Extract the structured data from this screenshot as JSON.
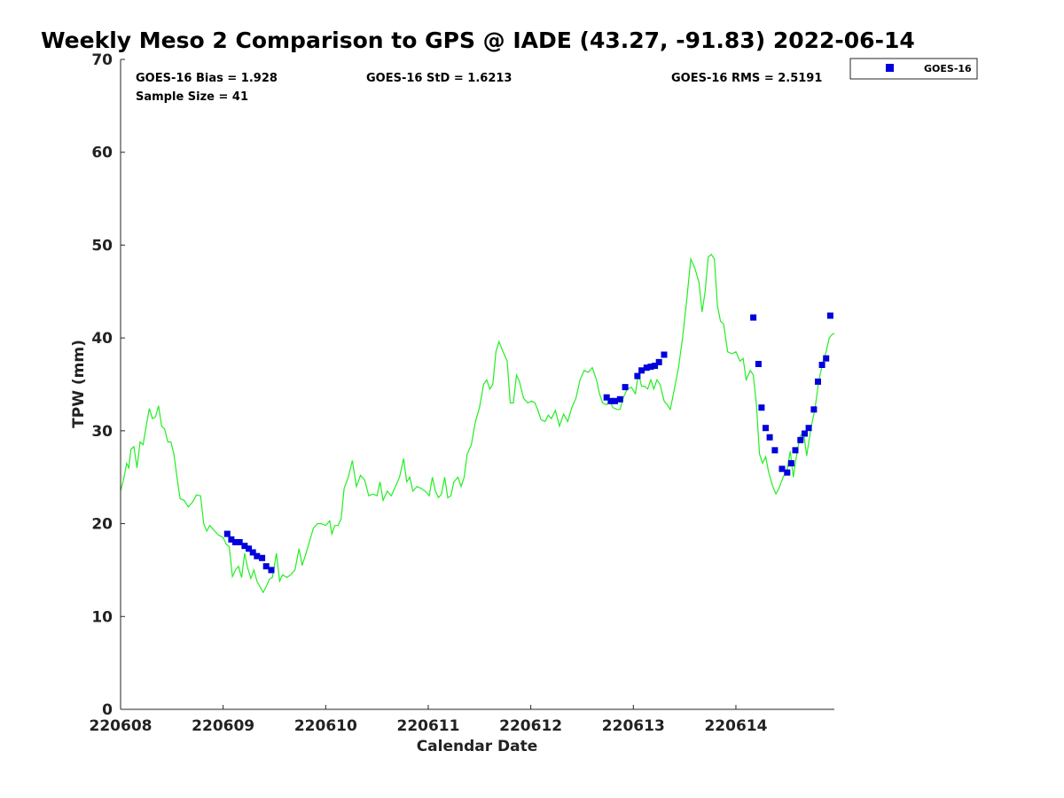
{
  "chart_data": {
    "type": "scatter",
    "title": "Weekly Meso 2 Comparison to GPS @ IADE (43.27, -91.83) 2022-06-14",
    "xlabel": "Calendar Date",
    "ylabel": "TPW (mm)",
    "xlim": [
      0,
      6.96
    ],
    "ylim": [
      0,
      70
    ],
    "x_tick_labels": [
      "220608",
      "220609",
      "220610",
      "220611",
      "220612",
      "220613",
      "220614"
    ],
    "x_tick_values": [
      0,
      1,
      2,
      3,
      4,
      5,
      6
    ],
    "y_ticks": [
      0,
      10,
      20,
      30,
      40,
      50,
      60,
      70
    ],
    "stats": {
      "bias": "GOES-16 Bias = 1.928",
      "std": "GOES-16 StD = 1.6213",
      "rms": "GOES-16 RMS = 2.5191",
      "sample": "Sample Size = 41"
    },
    "legend": {
      "placement": "upper-right-outside",
      "entries": [
        "GOES-16"
      ]
    },
    "colors": {
      "goes": "#0000dd",
      "gps": "#22ee22"
    },
    "series": [
      {
        "name": "GOES-16",
        "kind": "scatter",
        "points": [
          [
            1.04,
            18.9
          ],
          [
            1.08,
            18.3
          ],
          [
            1.12,
            18.0
          ],
          [
            1.16,
            18.0
          ],
          [
            1.21,
            17.6
          ],
          [
            1.25,
            17.3
          ],
          [
            1.29,
            16.9
          ],
          [
            1.33,
            16.5
          ],
          [
            1.38,
            16.3
          ],
          [
            1.42,
            15.4
          ],
          [
            1.47,
            15.0
          ],
          [
            4.74,
            33.6
          ],
          [
            4.78,
            33.2
          ],
          [
            4.82,
            33.2
          ],
          [
            4.87,
            33.4
          ],
          [
            4.92,
            34.7
          ],
          [
            5.04,
            35.9
          ],
          [
            5.08,
            36.5
          ],
          [
            5.13,
            36.8
          ],
          [
            5.17,
            36.9
          ],
          [
            5.21,
            37.0
          ],
          [
            5.25,
            37.4
          ],
          [
            5.3,
            38.2
          ],
          [
            6.17,
            42.2
          ],
          [
            6.22,
            37.2
          ],
          [
            6.25,
            32.5
          ],
          [
            6.29,
            30.3
          ],
          [
            6.33,
            29.3
          ],
          [
            6.38,
            27.9
          ],
          [
            6.45,
            25.9
          ],
          [
            6.5,
            25.5
          ],
          [
            6.54,
            26.5
          ],
          [
            6.58,
            27.9
          ],
          [
            6.63,
            29.0
          ],
          [
            6.67,
            29.7
          ],
          [
            6.71,
            30.3
          ],
          [
            6.76,
            32.3
          ],
          [
            6.8,
            35.3
          ],
          [
            6.84,
            37.1
          ],
          [
            6.88,
            37.8
          ],
          [
            6.92,
            42.4
          ]
        ]
      },
      {
        "name": "GPS",
        "kind": "line",
        "points": [
          [
            0.0,
            23.5
          ],
          [
            0.03,
            24.8
          ],
          [
            0.06,
            26.5
          ],
          [
            0.08,
            26.0
          ],
          [
            0.1,
            28.0
          ],
          [
            0.13,
            28.3
          ],
          [
            0.16,
            26.0
          ],
          [
            0.19,
            28.8
          ],
          [
            0.22,
            28.5
          ],
          [
            0.25,
            30.5
          ],
          [
            0.28,
            32.4
          ],
          [
            0.31,
            31.3
          ],
          [
            0.34,
            31.5
          ],
          [
            0.37,
            32.7
          ],
          [
            0.4,
            30.5
          ],
          [
            0.43,
            30.2
          ],
          [
            0.46,
            28.8
          ],
          [
            0.49,
            28.8
          ],
          [
            0.52,
            27.5
          ],
          [
            0.55,
            25.0
          ],
          [
            0.58,
            22.7
          ],
          [
            0.62,
            22.5
          ],
          [
            0.66,
            21.8
          ],
          [
            0.7,
            22.3
          ],
          [
            0.74,
            23.1
          ],
          [
            0.78,
            23.0
          ],
          [
            0.81,
            20.0
          ],
          [
            0.84,
            19.2
          ],
          [
            0.87,
            19.8
          ],
          [
            0.91,
            19.3
          ],
          [
            0.95,
            18.8
          ],
          [
            1.0,
            18.5
          ],
          [
            1.03,
            17.8
          ],
          [
            1.06,
            17.5
          ],
          [
            1.09,
            14.3
          ],
          [
            1.12,
            15.0
          ],
          [
            1.15,
            15.4
          ],
          [
            1.18,
            14.2
          ],
          [
            1.21,
            16.8
          ],
          [
            1.24,
            15.2
          ],
          [
            1.27,
            14.1
          ],
          [
            1.3,
            15.0
          ],
          [
            1.33,
            13.8
          ],
          [
            1.36,
            13.2
          ],
          [
            1.39,
            12.6
          ],
          [
            1.42,
            13.2
          ],
          [
            1.45,
            14.0
          ],
          [
            1.48,
            14.2
          ],
          [
            1.52,
            16.8
          ],
          [
            1.55,
            13.8
          ],
          [
            1.58,
            14.5
          ],
          [
            1.62,
            14.2
          ],
          [
            1.66,
            14.5
          ],
          [
            1.7,
            15.0
          ],
          [
            1.74,
            17.3
          ],
          [
            1.77,
            15.5
          ],
          [
            1.8,
            16.5
          ],
          [
            1.84,
            18.0
          ],
          [
            1.88,
            19.5
          ],
          [
            1.92,
            20.0
          ],
          [
            1.96,
            20.0
          ],
          [
            2.0,
            19.8
          ],
          [
            2.04,
            20.3
          ],
          [
            2.06,
            18.9
          ],
          [
            2.09,
            19.8
          ],
          [
            2.12,
            19.8
          ],
          [
            2.15,
            20.5
          ],
          [
            2.18,
            23.8
          ],
          [
            2.22,
            25.0
          ],
          [
            2.26,
            26.8
          ],
          [
            2.3,
            24.0
          ],
          [
            2.34,
            25.2
          ],
          [
            2.38,
            24.7
          ],
          [
            2.42,
            23.0
          ],
          [
            2.46,
            23.2
          ],
          [
            2.5,
            23.0
          ],
          [
            2.53,
            24.5
          ],
          [
            2.56,
            22.5
          ],
          [
            2.6,
            23.5
          ],
          [
            2.64,
            23.0
          ],
          [
            2.68,
            24.0
          ],
          [
            2.72,
            25.0
          ],
          [
            2.76,
            27.0
          ],
          [
            2.79,
            24.5
          ],
          [
            2.82,
            25.0
          ],
          [
            2.85,
            23.5
          ],
          [
            2.89,
            24.0
          ],
          [
            2.93,
            23.8
          ],
          [
            2.97,
            23.5
          ],
          [
            3.01,
            23.0
          ],
          [
            3.04,
            25.0
          ],
          [
            3.07,
            23.5
          ],
          [
            3.1,
            22.8
          ],
          [
            3.13,
            23.2
          ],
          [
            3.16,
            25.0
          ],
          [
            3.19,
            22.8
          ],
          [
            3.22,
            23.0
          ],
          [
            3.25,
            24.5
          ],
          [
            3.29,
            25.0
          ],
          [
            3.32,
            24.0
          ],
          [
            3.35,
            25.0
          ],
          [
            3.38,
            27.5
          ],
          [
            3.42,
            28.5
          ],
          [
            3.46,
            31.0
          ],
          [
            3.5,
            32.5
          ],
          [
            3.54,
            35.0
          ],
          [
            3.57,
            35.5
          ],
          [
            3.6,
            34.5
          ],
          [
            3.63,
            35.0
          ],
          [
            3.66,
            38.5
          ],
          [
            3.69,
            39.6
          ],
          [
            3.73,
            38.5
          ],
          [
            3.77,
            37.5
          ],
          [
            3.8,
            33.0
          ],
          [
            3.83,
            33.0
          ],
          [
            3.86,
            36.0
          ],
          [
            3.89,
            35.3
          ],
          [
            3.93,
            33.5
          ],
          [
            3.97,
            33.0
          ],
          [
            4.01,
            33.2
          ],
          [
            4.04,
            33.0
          ],
          [
            4.07,
            32.2
          ],
          [
            4.1,
            31.2
          ],
          [
            4.14,
            31.0
          ],
          [
            4.17,
            31.7
          ],
          [
            4.2,
            31.3
          ],
          [
            4.24,
            32.2
          ],
          [
            4.28,
            30.5
          ],
          [
            4.32,
            31.8
          ],
          [
            4.36,
            31.0
          ],
          [
            4.4,
            32.5
          ],
          [
            4.44,
            33.5
          ],
          [
            4.48,
            35.5
          ],
          [
            4.52,
            36.5
          ],
          [
            4.56,
            36.3
          ],
          [
            4.6,
            36.8
          ],
          [
            4.64,
            35.5
          ],
          [
            4.67,
            34.0
          ],
          [
            4.7,
            33.0
          ],
          [
            4.74,
            32.8
          ],
          [
            4.77,
            33.2
          ],
          [
            4.8,
            32.5
          ],
          [
            4.84,
            32.3
          ],
          [
            4.87,
            32.3
          ],
          [
            4.9,
            33.5
          ],
          [
            4.94,
            34.5
          ],
          [
            4.98,
            34.7
          ],
          [
            5.02,
            34.0
          ],
          [
            5.05,
            36.2
          ],
          [
            5.08,
            34.8
          ],
          [
            5.11,
            34.8
          ],
          [
            5.14,
            34.5
          ],
          [
            5.17,
            35.5
          ],
          [
            5.2,
            34.5
          ],
          [
            5.23,
            35.5
          ],
          [
            5.26,
            35.0
          ],
          [
            5.3,
            33.2
          ],
          [
            5.33,
            32.8
          ],
          [
            5.36,
            32.3
          ],
          [
            5.4,
            34.5
          ],
          [
            5.44,
            36.8
          ],
          [
            5.48,
            40.0
          ],
          [
            5.52,
            44.0
          ],
          [
            5.56,
            48.5
          ],
          [
            5.6,
            47.5
          ],
          [
            5.64,
            46.0
          ],
          [
            5.67,
            42.8
          ],
          [
            5.7,
            45.0
          ],
          [
            5.73,
            48.7
          ],
          [
            5.76,
            49.0
          ],
          [
            5.79,
            48.5
          ],
          [
            5.82,
            43.5
          ],
          [
            5.85,
            41.8
          ],
          [
            5.88,
            41.5
          ],
          [
            5.92,
            38.5
          ],
          [
            5.96,
            38.3
          ],
          [
            6.0,
            38.5
          ],
          [
            6.04,
            37.5
          ],
          [
            6.07,
            37.8
          ],
          [
            6.1,
            35.5
          ],
          [
            6.14,
            36.5
          ],
          [
            6.17,
            36.0
          ],
          [
            6.2,
            32.8
          ],
          [
            6.23,
            27.5
          ],
          [
            6.26,
            26.5
          ],
          [
            6.29,
            27.2
          ],
          [
            6.32,
            25.5
          ],
          [
            6.36,
            24.0
          ],
          [
            6.39,
            23.2
          ],
          [
            6.42,
            23.8
          ],
          [
            6.46,
            25.0
          ],
          [
            6.5,
            25.8
          ],
          [
            6.53,
            27.8
          ],
          [
            6.56,
            25.0
          ],
          [
            6.6,
            28.0
          ],
          [
            6.63,
            29.5
          ],
          [
            6.66,
            29.8
          ],
          [
            6.69,
            27.3
          ],
          [
            6.73,
            30.2
          ],
          [
            6.77,
            32.3
          ],
          [
            6.81,
            35.5
          ],
          [
            6.85,
            37.5
          ],
          [
            6.88,
            38.5
          ],
          [
            6.91,
            40.0
          ],
          [
            6.94,
            40.4
          ],
          [
            6.96,
            40.5
          ]
        ]
      }
    ]
  }
}
